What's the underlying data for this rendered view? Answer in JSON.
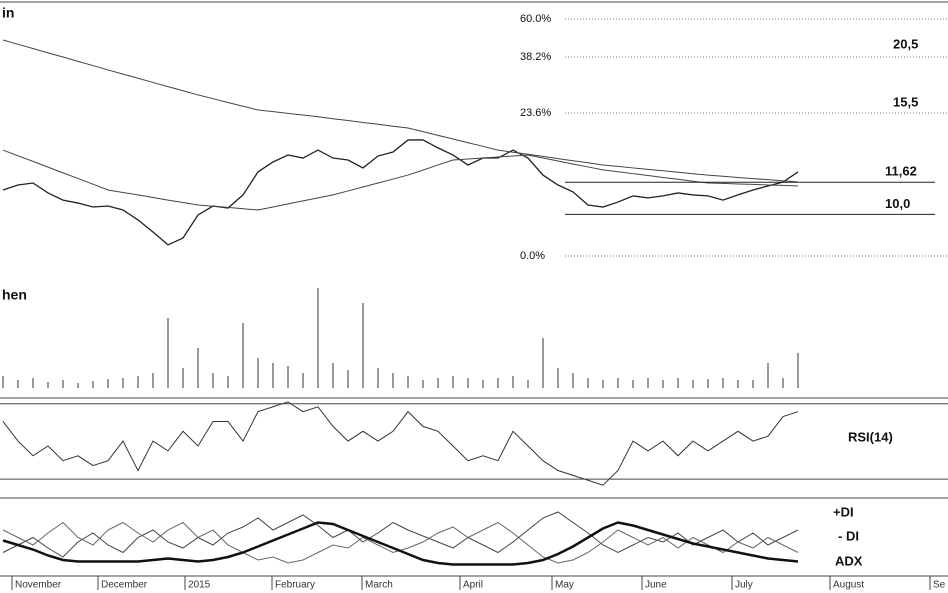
{
  "chart_data": [
    {
      "type": "line",
      "title": "in",
      "ylim": [
        7.7,
        20.3
      ],
      "fib_labels": [
        "60.0%",
        "38.2%",
        "23.6%",
        "0.0%"
      ],
      "annotations": [
        "20,5",
        "15,5"
      ],
      "levels": [
        {
          "value": 11.62,
          "label": "11,62"
        },
        {
          "value": 10.0,
          "label": "10,0"
        }
      ],
      "series": [
        {
          "color": "#222",
          "values": [
            11.23,
            11.48,
            11.58,
            11.08,
            10.72,
            10.57,
            10.37,
            10.42,
            10.22,
            9.72,
            9.11,
            8.46,
            8.81,
            9.97,
            10.42,
            10.32,
            10.98,
            12.14,
            12.64,
            12.99,
            12.84,
            13.24,
            12.84,
            12.74,
            12.34,
            12.94,
            13.14,
            13.75,
            13.75,
            13.35,
            12.99,
            12.49,
            12.84,
            12.84,
            13.24,
            12.84,
            11.98,
            11.48,
            11.13,
            10.47,
            10.37,
            10.62,
            10.93,
            10.83,
            10.93,
            11.08,
            10.98,
            10.93,
            10.72,
            10.98,
            11.23,
            11.43,
            11.63,
            12.14
          ]
        },
        {
          "color": "#444",
          "values": [
            18.79,
            18.57,
            18.36,
            18.14,
            17.93,
            17.71,
            17.5,
            17.28,
            17.07,
            16.86,
            16.65,
            16.44,
            16.23,
            16.02,
            15.83,
            15.64,
            15.45,
            15.26,
            15.18,
            15.09,
            15.01,
            14.92,
            14.82,
            14.73,
            14.63,
            14.54,
            14.44,
            14.35,
            14.17,
            13.98,
            13.8,
            13.61,
            13.43,
            13.24,
            13.13,
            13.03,
            12.92,
            12.81,
            12.7,
            12.6,
            12.49,
            12.42,
            12.34,
            12.27,
            12.2,
            12.12,
            12.05,
            11.98,
            11.92,
            11.86,
            11.8,
            11.75,
            11.69,
            11.63
          ]
        },
        {
          "color": "#444",
          "values": [
            13.24,
            12.95,
            12.67,
            12.38,
            12.09,
            11.81,
            11.52,
            11.23,
            11.1,
            10.98,
            10.85,
            10.72,
            10.6,
            10.47,
            10.41,
            10.35,
            10.28,
            10.22,
            10.37,
            10.53,
            10.68,
            10.83,
            10.98,
            11.18,
            11.38,
            11.58,
            11.78,
            11.98,
            12.23,
            12.49,
            12.74,
            12.79,
            12.84,
            12.89,
            12.94,
            12.99,
            12.84,
            12.69,
            12.54,
            12.39,
            12.24,
            12.15,
            12.05,
            11.96,
            11.86,
            11.77,
            11.67,
            11.58,
            11.56,
            11.53,
            11.51,
            11.48,
            11.46,
            11.43
          ]
        }
      ]
    },
    {
      "type": "bar",
      "title": "hen",
      "ylim": [
        0,
        100
      ],
      "color": "#555",
      "values": [
        12,
        8,
        10,
        6,
        8,
        5,
        7,
        9,
        10,
        12,
        15,
        70,
        20,
        40,
        15,
        12,
        65,
        30,
        25,
        22,
        15,
        100,
        25,
        18,
        85,
        20,
        15,
        12,
        8,
        10,
        12,
        10,
        8,
        10,
        12,
        8,
        50,
        20,
        15,
        10,
        8,
        10,
        8,
        10,
        8,
        10,
        8,
        9,
        10,
        8,
        8,
        25,
        10,
        35
      ]
    },
    {
      "type": "line",
      "ylim": [
        20,
        72
      ],
      "levels": [
        30,
        70
      ],
      "series": [
        {
          "name": "RSI(14)",
          "color": "#333",
          "values": [
            60.6,
            50.2,
            42.4,
            47.6,
            39.8,
            42.4,
            37.2,
            39.8,
            50.2,
            34.6,
            50.2,
            45.0,
            55.4,
            47.6,
            60.6,
            60.6,
            50.2,
            65.8,
            68.4,
            71.0,
            65.8,
            68.4,
            58.0,
            50.2,
            55.4,
            50.2,
            55.4,
            65.8,
            58.0,
            55.4,
            47.6,
            39.8,
            42.4,
            39.8,
            55.4,
            47.6,
            39.8,
            34.6,
            32.0,
            29.4,
            26.8,
            34.6,
            50.2,
            45.0,
            50.2,
            42.4,
            50.2,
            45.0,
            50.2,
            55.4,
            50.2,
            52.8,
            63.2,
            65.8
          ]
        }
      ]
    },
    {
      "type": "line",
      "ylim": [
        0,
        50
      ],
      "months": [
        "November",
        "December",
        "2015",
        "February",
        "March",
        "April",
        "May",
        "June",
        "July",
        "August",
        "Se"
      ],
      "series": [
        {
          "name": "+DI",
          "color": "#444",
          "width": 1,
          "values": [
            15,
            20,
            25,
            18,
            12,
            22,
            28,
            20,
            15,
            25,
            30,
            22,
            18,
            25,
            20,
            28,
            32,
            38,
            30,
            35,
            40,
            33,
            25,
            30,
            22,
            28,
            35,
            30,
            26,
            22,
            18,
            25,
            20,
            15,
            22,
            30,
            38,
            42,
            35,
            28,
            20,
            15,
            20,
            25,
            22,
            28,
            20,
            25,
            30,
            22,
            28,
            20,
            25,
            30
          ]
        },
        {
          "name": "- DI",
          "color": "#666",
          "width": 1,
          "values": [
            30,
            25,
            20,
            28,
            35,
            25,
            20,
            30,
            35,
            28,
            22,
            30,
            35,
            25,
            30,
            20,
            15,
            10,
            12,
            8,
            10,
            15,
            20,
            18,
            25,
            20,
            15,
            18,
            22,
            28,
            32,
            25,
            30,
            35,
            28,
            20,
            12,
            8,
            10,
            15,
            22,
            30,
            25,
            20,
            25,
            18,
            25,
            20,
            15,
            22,
            18,
            25,
            20,
            15
          ]
        },
        {
          "name": "ADX",
          "color": "#111",
          "width": 2.5,
          "values": [
            23,
            20,
            17,
            13,
            10,
            9,
            9,
            9,
            9,
            9,
            10,
            11,
            10,
            9,
            10,
            12,
            15,
            19,
            23,
            27,
            31,
            35,
            34,
            30,
            26,
            22,
            18,
            14,
            10,
            8,
            7,
            7,
            7,
            7,
            7,
            8,
            10,
            14,
            19,
            25,
            31,
            35,
            33,
            30,
            27,
            24,
            21,
            19,
            17,
            15,
            13,
            11,
            10,
            9
          ]
        }
      ]
    }
  ]
}
